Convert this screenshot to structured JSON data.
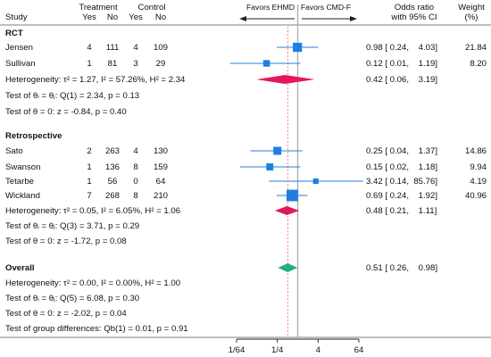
{
  "chart_data": {
    "type": "forest",
    "x_scale": "log2",
    "headers": {
      "study": "Study",
      "treatment": "Treatment",
      "control": "Control",
      "yes": "Yes",
      "no": "No",
      "or_line1": "Odds ratio",
      "or_line2": "with 95% CI",
      "weight_line1": "Weight",
      "weight_line2": "(%)",
      "favors_left": "Favors EHMD",
      "favors_right": "Favors CMD-F"
    },
    "x_ticks": [
      {
        "value": 0.015625,
        "label": "1/64"
      },
      {
        "value": 0.25,
        "label": "1/4"
      },
      {
        "value": 4,
        "label": "4"
      },
      {
        "value": 64,
        "label": "64"
      }
    ],
    "null_line": 1,
    "overall_reference": 0.51,
    "colors": {
      "study_marker": "#1f7fe0",
      "subgroup_diamond": "#e3195a",
      "overall_diamond": "#22b07d",
      "null_line": "#b0b0b0",
      "reference_line": "#ff6b6b"
    },
    "groups": [
      {
        "name": "RCT",
        "studies": [
          {
            "study": "Jensen",
            "t_yes": "4",
            "t_no": "111",
            "c_yes": "4",
            "c_no": "109",
            "or": 0.98,
            "lo": 0.24,
            "hi": 4.03,
            "ci_text": "0.98 [ 0.24,    4.03]",
            "weight": "21.84"
          },
          {
            "study": "Sullivan",
            "t_yes": "1",
            "t_no": "81",
            "c_yes": "3",
            "c_no": "29",
            "or": 0.12,
            "lo": 0.01,
            "hi": 1.19,
            "ci_text": "0.12 [ 0.01,    1.19]",
            "weight": "8.20"
          }
        ],
        "pooled": {
          "or": 0.42,
          "lo": 0.06,
          "hi": 3.19,
          "ci_text": "0.42 [ 0.06,    3.19]"
        },
        "heterogeneity": "Heterogeneity: τ² = 1.27, I² = 57.26%, H² = 2.34",
        "test_theta_i": "Test of θᵢ = θⱼ: Q(1) = 2.34, p = 0.13",
        "test_theta": "Test of θ = 0: z = -0.84, p = 0.40"
      },
      {
        "name": "Retrospective",
        "studies": [
          {
            "study": "Sato",
            "t_yes": "2",
            "t_no": "263",
            "c_yes": "4",
            "c_no": "130",
            "or": 0.25,
            "lo": 0.04,
            "hi": 1.37,
            "ci_text": "0.25 [ 0.04,    1.37]",
            "weight": "14.86"
          },
          {
            "study": "Swanson",
            "t_yes": "1",
            "t_no": "136",
            "c_yes": "8",
            "c_no": "159",
            "or": 0.15,
            "lo": 0.02,
            "hi": 1.18,
            "ci_text": "0.15 [ 0.02,    1.18]",
            "weight": "9.94"
          },
          {
            "study": "Tetarbe",
            "t_yes": "1",
            "t_no": "56",
            "c_yes": "0",
            "c_no": "64",
            "or": 3.42,
            "lo": 0.14,
            "hi": 85.76,
            "ci_text": "3.42 [ 0.14,  85.76]",
            "weight": "4.19"
          },
          {
            "study": "Wickland",
            "t_yes": "7",
            "t_no": "268",
            "c_yes": "8",
            "c_no": "210",
            "or": 0.69,
            "lo": 0.24,
            "hi": 1.92,
            "ci_text": "0.69 [ 0.24,    1.92]",
            "weight": "40.96"
          }
        ],
        "pooled": {
          "or": 0.48,
          "lo": 0.21,
          "hi": 1.11,
          "ci_text": "0.48 [ 0.21,    1.11]"
        },
        "heterogeneity": "Heterogeneity: τ² = 0.05, I² = 6.05%, H² = 1.06",
        "test_theta_i": "Test of θᵢ = θⱼ: Q(3) = 3.71, p = 0.29",
        "test_theta": "Test of θ = 0: z = -1.72, p = 0.08"
      }
    ],
    "overall": {
      "name": "Overall",
      "or": 0.51,
      "lo": 0.26,
      "hi": 0.98,
      "ci_text": "0.51 [ 0.26,    0.98]",
      "heterogeneity": "Heterogeneity: τ² = 0.00, I² = 0.00%, H² = 1.00",
      "test_theta_i": "Test of θᵢ = θⱼ: Q(5) = 6.08, p = 0.30",
      "test_theta": "Test of θ = 0: z = -2.02, p = 0.04"
    },
    "group_differences": "Test of group differences: Qb(1) = 0.01, p = 0.91"
  }
}
